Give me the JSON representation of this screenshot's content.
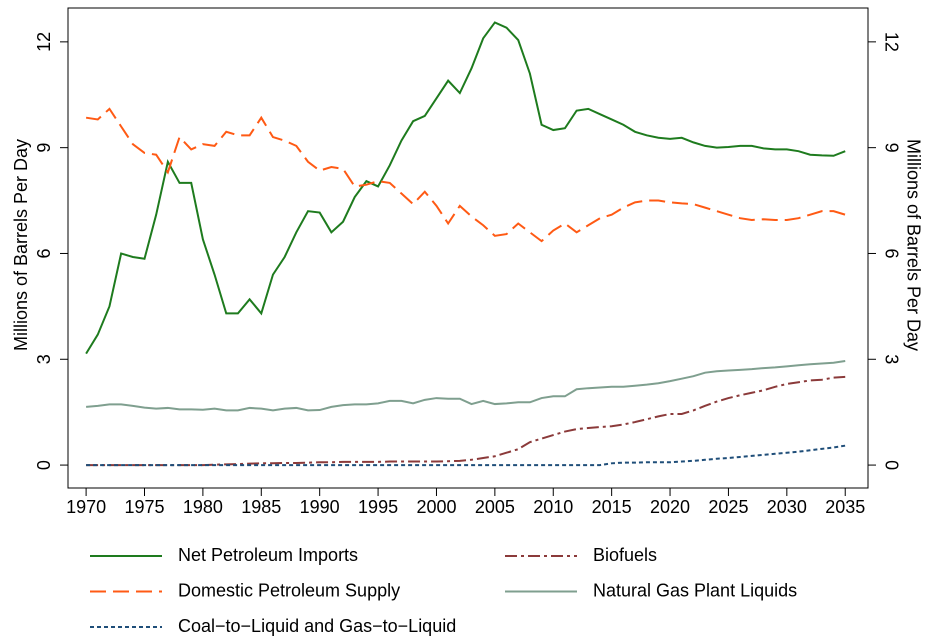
{
  "chart_data": {
    "type": "line",
    "ylabel": "Millions of Barrels Per Day",
    "y2label": "Millions of Barrels Per Day",
    "x": [
      1970,
      1971,
      1972,
      1973,
      1974,
      1975,
      1976,
      1977,
      1978,
      1979,
      1980,
      1981,
      1982,
      1983,
      1984,
      1985,
      1986,
      1987,
      1988,
      1989,
      1990,
      1991,
      1992,
      1993,
      1994,
      1995,
      1996,
      1997,
      1998,
      1999,
      2000,
      2001,
      2002,
      2003,
      2004,
      2005,
      2006,
      2007,
      2008,
      2009,
      2010,
      2011,
      2012,
      2013,
      2014,
      2015,
      2016,
      2017,
      2018,
      2019,
      2020,
      2021,
      2022,
      2023,
      2024,
      2025,
      2026,
      2027,
      2028,
      2029,
      2030,
      2031,
      2032,
      2033,
      2034,
      2035
    ],
    "xlim": [
      1968.45,
      2036.95
    ],
    "xticks": [
      1970,
      1975,
      1980,
      1985,
      1990,
      1995,
      2000,
      2005,
      2010,
      2015,
      2020,
      2025,
      2030,
      2035
    ],
    "ylim": [
      -0.65,
      12.96
    ],
    "yticks": [
      0,
      3,
      6,
      9,
      12
    ],
    "y2lim": [
      -0.65,
      12.96
    ],
    "y2ticks": [
      0,
      3,
      6,
      9,
      12
    ],
    "legend": "bottom",
    "series": [
      {
        "name": "Net Petroleum Imports",
        "color": "#1e7b1e",
        "linestyle": "solid",
        "values": [
          3.16,
          3.7,
          4.5,
          6.0,
          5.9,
          5.85,
          7.1,
          8.6,
          8.0,
          8.0,
          6.4,
          5.4,
          4.3,
          4.3,
          4.7,
          4.3,
          5.4,
          5.9,
          6.6,
          7.2,
          7.16,
          6.6,
          6.9,
          7.6,
          8.05,
          7.9,
          8.5,
          9.2,
          9.75,
          9.9,
          10.4,
          10.9,
          10.55,
          11.25,
          12.1,
          12.55,
          12.4,
          12.05,
          11.1,
          9.65,
          9.5,
          9.55,
          10.05,
          10.1,
          9.95,
          9.8,
          9.65,
          9.45,
          9.35,
          9.28,
          9.25,
          9.28,
          9.15,
          9.05,
          9.0,
          9.02,
          9.05,
          9.05,
          8.98,
          8.95,
          8.95,
          8.9,
          8.8,
          8.78,
          8.77,
          8.9
        ]
      },
      {
        "name": "Biofuels",
        "color": "#8b3a3a",
        "linestyle": "dashdot",
        "values": [
          0,
          0,
          0,
          0,
          0,
          0,
          0,
          0,
          0,
          0,
          0,
          0.01,
          0.02,
          0.03,
          0.04,
          0.05,
          0.05,
          0.06,
          0.06,
          0.07,
          0.08,
          0.08,
          0.09,
          0.09,
          0.09,
          0.09,
          0.1,
          0.1,
          0.1,
          0.1,
          0.1,
          0.11,
          0.12,
          0.15,
          0.2,
          0.25,
          0.35,
          0.45,
          0.65,
          0.75,
          0.85,
          0.95,
          1.02,
          1.05,
          1.08,
          1.1,
          1.15,
          1.22,
          1.3,
          1.38,
          1.45,
          1.45,
          1.55,
          1.68,
          1.8,
          1.9,
          1.98,
          2.05,
          2.12,
          2.22,
          2.3,
          2.35,
          2.4,
          2.42,
          2.48,
          2.5
        ]
      },
      {
        "name": "Domestic Petroleum Supply",
        "color": "#ff5a14",
        "linestyle": "longdash",
        "values": [
          9.85,
          9.8,
          10.1,
          9.6,
          9.1,
          8.85,
          8.8,
          8.3,
          9.3,
          8.95,
          9.1,
          9.05,
          9.45,
          9.35,
          9.35,
          9.85,
          9.3,
          9.2,
          9.05,
          8.6,
          8.35,
          8.45,
          8.4,
          7.9,
          7.95,
          8.05,
          8.0,
          7.7,
          7.4,
          7.75,
          7.35,
          6.85,
          7.35,
          7.05,
          6.8,
          6.5,
          6.55,
          6.85,
          6.6,
          6.35,
          6.65,
          6.85,
          6.6,
          6.8,
          7.0,
          7.1,
          7.3,
          7.45,
          7.5,
          7.5,
          7.45,
          7.42,
          7.4,
          7.3,
          7.2,
          7.1,
          7.0,
          6.95,
          6.97,
          6.95,
          6.95,
          7.0,
          7.1,
          7.2,
          7.2,
          7.1
        ]
      },
      {
        "name": "Natural Gas Plant Liquids",
        "color": "#7f9f8f",
        "linestyle": "solid",
        "values": [
          1.65,
          1.68,
          1.72,
          1.72,
          1.68,
          1.63,
          1.6,
          1.62,
          1.58,
          1.58,
          1.57,
          1.6,
          1.55,
          1.55,
          1.62,
          1.6,
          1.55,
          1.6,
          1.62,
          1.55,
          1.56,
          1.65,
          1.7,
          1.72,
          1.72,
          1.75,
          1.82,
          1.82,
          1.75,
          1.85,
          1.9,
          1.88,
          1.88,
          1.73,
          1.82,
          1.73,
          1.75,
          1.78,
          1.78,
          1.9,
          1.95,
          1.95,
          2.15,
          2.18,
          2.2,
          2.22,
          2.22,
          2.25,
          2.28,
          2.32,
          2.38,
          2.45,
          2.52,
          2.62,
          2.66,
          2.68,
          2.7,
          2.72,
          2.75,
          2.77,
          2.8,
          2.83,
          2.86,
          2.88,
          2.9,
          2.95
        ]
      },
      {
        "name": "Coal−to−Liquid and Gas−to−Liquid",
        "color": "#1f4e79",
        "linestyle": "dashed",
        "values": [
          0,
          0,
          0,
          0,
          0,
          0,
          0,
          0,
          0,
          0,
          0,
          0,
          0,
          0,
          0,
          0,
          0,
          0,
          0,
          0,
          0,
          0,
          0,
          0,
          0,
          0,
          0,
          0,
          0,
          0,
          0,
          0,
          0,
          0,
          0,
          0,
          0,
          0,
          0,
          0,
          0,
          0,
          0,
          0,
          0,
          0.05,
          0.07,
          0.07,
          0.08,
          0.08,
          0.08,
          0.1,
          0.12,
          0.15,
          0.18,
          0.2,
          0.23,
          0.26,
          0.29,
          0.32,
          0.35,
          0.38,
          0.42,
          0.46,
          0.5,
          0.55
        ]
      }
    ]
  }
}
